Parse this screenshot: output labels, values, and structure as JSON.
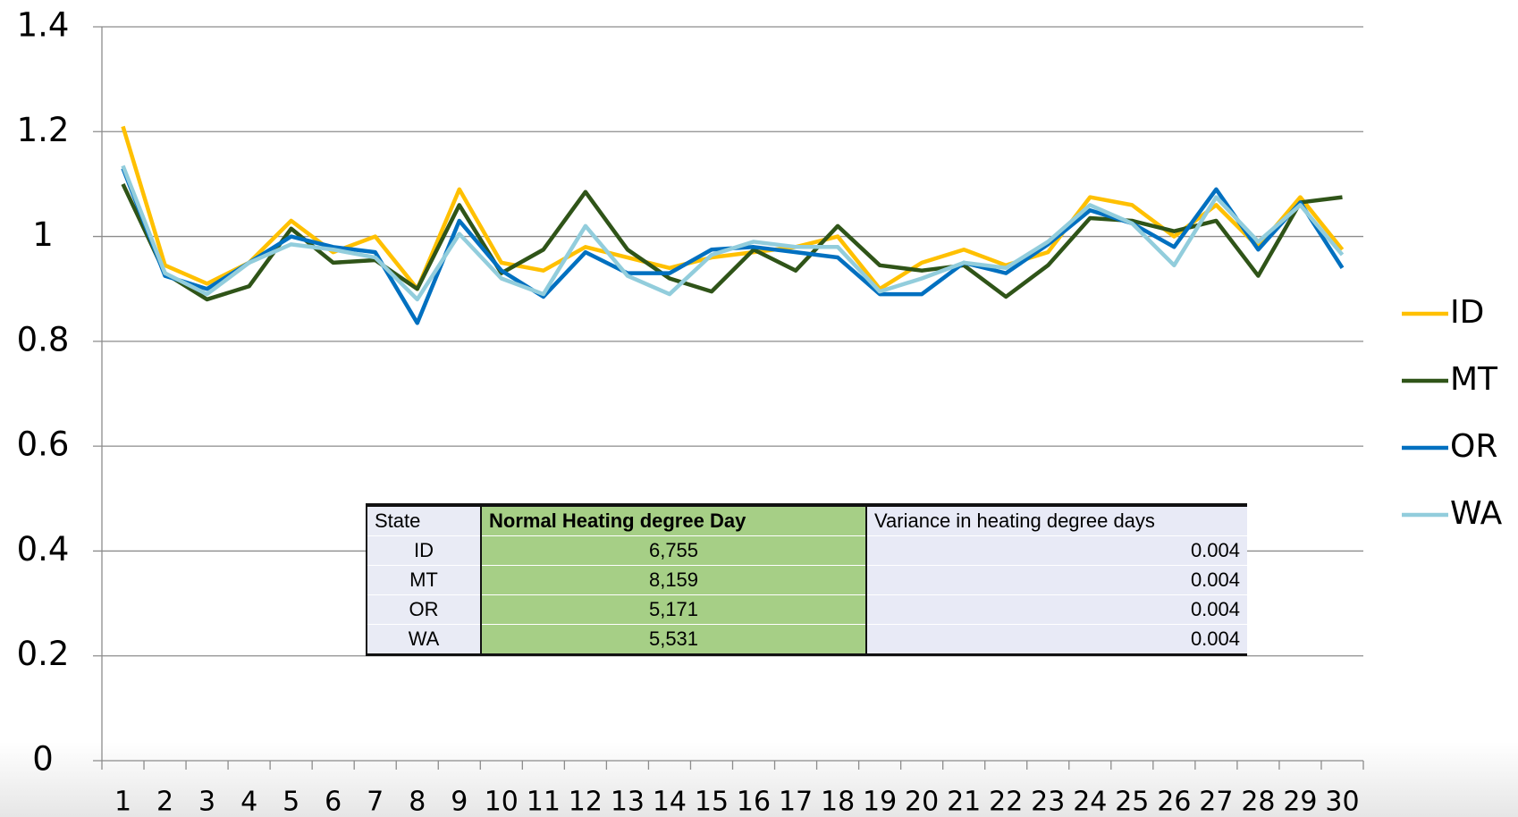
{
  "chart_data": {
    "type": "line",
    "categories": [
      "1",
      "2",
      "3",
      "4",
      "5",
      "6",
      "7",
      "8",
      "9",
      "10",
      "11",
      "12",
      "13",
      "14",
      "15",
      "16",
      "17",
      "18",
      "19",
      "20",
      "21",
      "22",
      "23",
      "24",
      "25",
      "26",
      "27",
      "28",
      "29",
      "30"
    ],
    "series": [
      {
        "name": "ID",
        "color": "#ffc000",
        "values": [
          1.21,
          0.945,
          0.91,
          0.95,
          1.03,
          0.97,
          1.0,
          0.9,
          1.09,
          0.95,
          0.935,
          0.98,
          0.96,
          0.94,
          0.96,
          0.97,
          0.98,
          1.0,
          0.9,
          0.95,
          0.975,
          0.945,
          0.97,
          1.075,
          1.06,
          1.0,
          1.06,
          0.98,
          1.075,
          0.975
        ]
      },
      {
        "name": "MT",
        "color": "#2f5418",
        "values": [
          1.1,
          0.93,
          0.88,
          0.905,
          1.015,
          0.95,
          0.955,
          0.9,
          1.06,
          0.93,
          0.975,
          1.085,
          0.975,
          0.92,
          0.895,
          0.975,
          0.935,
          1.02,
          0.945,
          0.935,
          0.945,
          0.885,
          0.945,
          1.035,
          1.03,
          1.01,
          1.03,
          0.925,
          1.065,
          1.075
        ]
      },
      {
        "name": "OR",
        "color": "#0070c0",
        "values": [
          1.13,
          0.925,
          0.9,
          0.95,
          1.0,
          0.98,
          0.97,
          0.835,
          1.03,
          0.935,
          0.885,
          0.97,
          0.93,
          0.93,
          0.975,
          0.98,
          0.97,
          0.96,
          0.89,
          0.89,
          0.95,
          0.93,
          0.985,
          1.05,
          1.025,
          0.98,
          1.09,
          0.975,
          1.065,
          0.94
        ]
      },
      {
        "name": "WA",
        "color": "#92cddc",
        "values": [
          1.135,
          0.93,
          0.89,
          0.95,
          0.985,
          0.975,
          0.96,
          0.88,
          1.005,
          0.92,
          0.89,
          1.02,
          0.925,
          0.89,
          0.965,
          0.99,
          0.98,
          0.98,
          0.895,
          0.92,
          0.95,
          0.94,
          0.99,
          1.06,
          1.025,
          0.945,
          1.075,
          0.99,
          1.06,
          0.965
        ]
      }
    ],
    "ylim": [
      0,
      1.4
    ],
    "yticks": [
      0,
      0.2,
      0.4,
      0.6,
      0.8,
      1,
      1.2,
      1.4
    ],
    "grid": true,
    "legend": "right",
    "table": {
      "columns": [
        "State",
        "Normal Heating degree Day",
        "Variance in heating degree days"
      ],
      "rows": [
        [
          "ID",
          "6,755",
          "0.004"
        ],
        [
          "MT",
          "8,159",
          "0.004"
        ],
        [
          "OR",
          "5,171",
          "0.004"
        ],
        [
          "WA",
          "5,531",
          "0.004"
        ]
      ]
    }
  }
}
